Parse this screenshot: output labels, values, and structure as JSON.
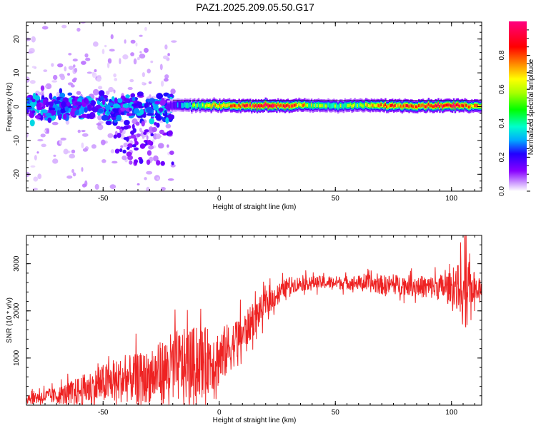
{
  "figure": {
    "title": "PAZ1.2025.209.05.50.G17"
  },
  "chart_data": [
    {
      "id": "spectrogram",
      "type": "heatmap",
      "title": "",
      "xlabel": "Height of straight line (km)",
      "ylabel": "Frequency (Hz)",
      "xlim": [
        -83,
        113
      ],
      "ylim": [
        -25,
        25
      ],
      "xticks": [
        -50,
        0,
        50,
        100
      ],
      "yticks": [
        -20,
        -10,
        0,
        10,
        20
      ],
      "colorbar": {
        "label": "Normalized spectral amplitude",
        "range": [
          0,
          1
        ],
        "ticks": [
          0.0,
          0.2,
          0.4,
          0.6,
          0.8
        ],
        "colormap": "rainbow (white-violet-blue-cyan-green-yellow-red-magenta)",
        "stops": [
          "#ffffff",
          "#cc99ff",
          "#8800ff",
          "#2200ff",
          "#00aaff",
          "#00ffcc",
          "#00ff00",
          "#aaff00",
          "#ffff00",
          "#ff8800",
          "#ff0000",
          "#ff0080"
        ]
      },
      "ridge": {
        "center_freq_hz": 0.3,
        "description_x_ranges_km": [
          [
            -20,
            113
          ]
        ],
        "amplitude_by_x": [
          {
            "x": -20,
            "amp": 0.35
          },
          {
            "x": -10,
            "amp": 0.55
          },
          {
            "x": 0,
            "amp": 0.7
          },
          {
            "x": 10,
            "amp": 0.8
          },
          {
            "x": 20,
            "amp": 0.95
          },
          {
            "x": 30,
            "amp": 0.85
          },
          {
            "x": 40,
            "amp": 0.6
          },
          {
            "x": 50,
            "amp": 0.55
          },
          {
            "x": 60,
            "amp": 0.6
          },
          {
            "x": 70,
            "amp": 0.75
          },
          {
            "x": 80,
            "amp": 0.8
          },
          {
            "x": 90,
            "amp": 0.85
          },
          {
            "x": 100,
            "amp": 0.95
          },
          {
            "x": 110,
            "amp": 0.7
          }
        ]
      },
      "scatter_region": {
        "x_range_km": [
          -83,
          -20
        ],
        "freq_spread_hz": 5,
        "outlier_spread_hz": 25
      }
    },
    {
      "id": "snr",
      "type": "line",
      "title": "",
      "xlabel": "Height of straight line (km)",
      "ylabel": "SNR (10 * v/v)",
      "xlim": [
        -83,
        113
      ],
      "ylim": [
        0,
        3600
      ],
      "xticks": [
        -50,
        0,
        50,
        100
      ],
      "yticks": [
        1000,
        2000,
        3000
      ],
      "color": "#ee2222",
      "envelope": [
        {
          "x": -83,
          "mean": 150,
          "noise": 180
        },
        {
          "x": -70,
          "mean": 200,
          "noise": 250
        },
        {
          "x": -60,
          "mean": 300,
          "noise": 450
        },
        {
          "x": -50,
          "mean": 450,
          "noise": 600
        },
        {
          "x": -40,
          "mean": 550,
          "noise": 700
        },
        {
          "x": -30,
          "mean": 600,
          "noise": 800
        },
        {
          "x": -20,
          "mean": 800,
          "noise": 1100
        },
        {
          "x": -10,
          "mean": 900,
          "noise": 1100
        },
        {
          "x": 0,
          "mean": 1000,
          "noise": 900
        },
        {
          "x": 10,
          "mean": 1500,
          "noise": 600
        },
        {
          "x": 20,
          "mean": 2150,
          "noise": 400
        },
        {
          "x": 30,
          "mean": 2550,
          "noise": 250
        },
        {
          "x": 40,
          "mean": 2600,
          "noise": 200
        },
        {
          "x": 50,
          "mean": 2600,
          "noise": 200
        },
        {
          "x": 60,
          "mean": 2600,
          "noise": 220
        },
        {
          "x": 70,
          "mean": 2550,
          "noise": 300
        },
        {
          "x": 80,
          "mean": 2550,
          "noise": 300
        },
        {
          "x": 90,
          "mean": 2500,
          "noise": 350
        },
        {
          "x": 100,
          "mean": 2500,
          "noise": 450
        },
        {
          "x": 105,
          "mean": 2500,
          "noise": 900
        },
        {
          "x": 113,
          "mean": 2500,
          "noise": 200
        }
      ],
      "peak": {
        "x": 106,
        "y": 3600
      }
    }
  ]
}
